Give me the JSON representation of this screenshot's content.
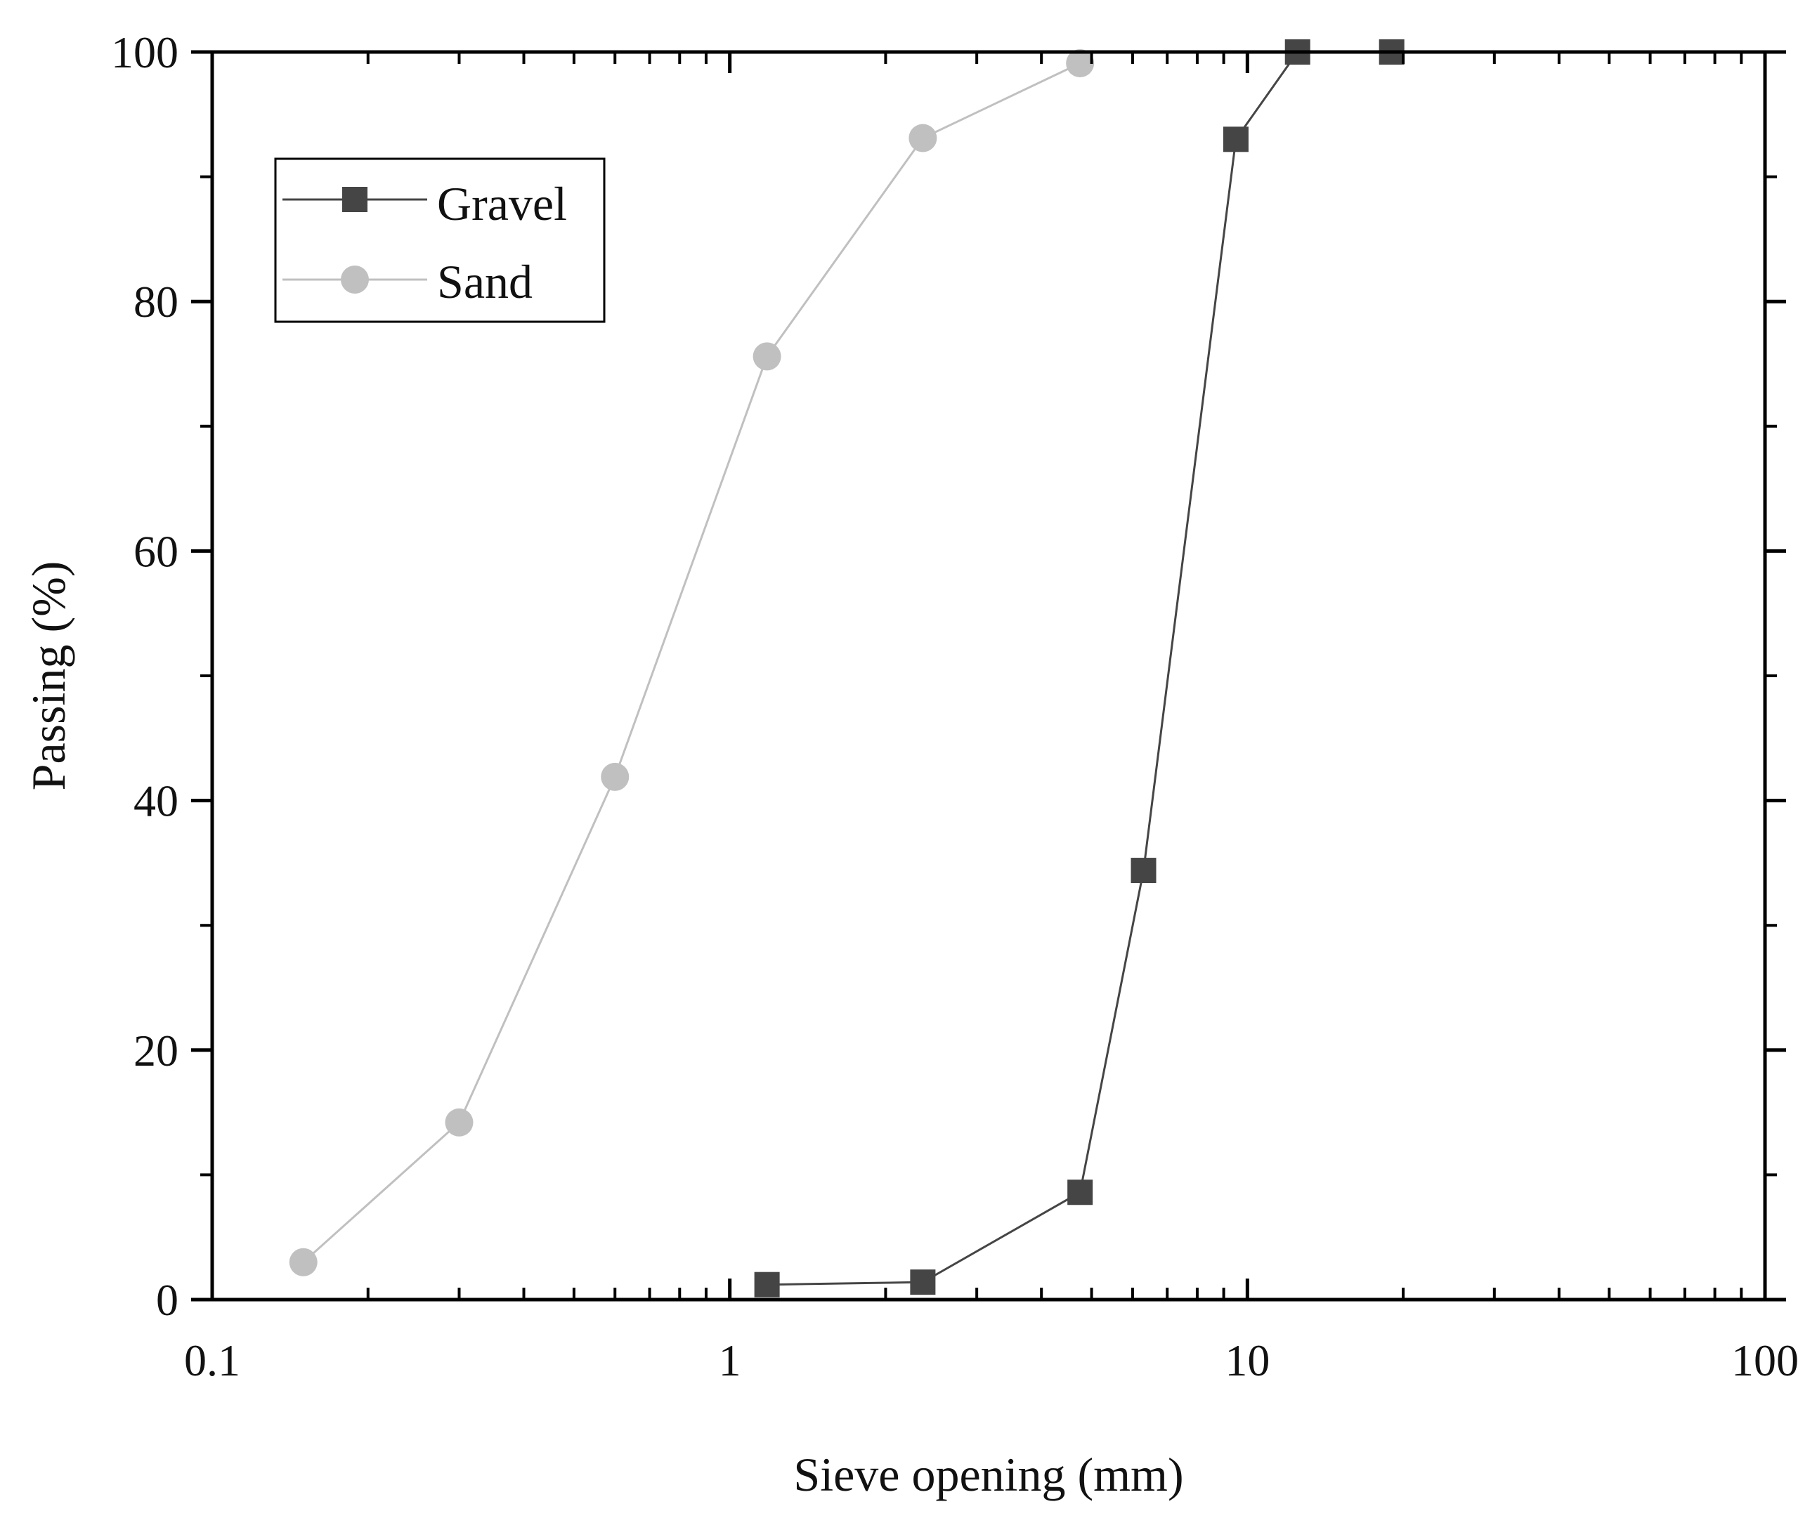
{
  "chart_data": {
    "type": "line",
    "xlabel": "Sieve opening (mm)",
    "ylabel": "Passing (%)",
    "xscale": "log",
    "xlim": [
      0.1,
      100
    ],
    "ylim": [
      0,
      100
    ],
    "xticks": [
      {
        "value": 0.1,
        "label": "0.1"
      },
      {
        "value": 1,
        "label": "1"
      },
      {
        "value": 10,
        "label": "10"
      },
      {
        "value": 100,
        "label": "100"
      }
    ],
    "yticks": [
      {
        "value": 0,
        "label": "0"
      },
      {
        "value": 20,
        "label": "20"
      },
      {
        "value": 40,
        "label": "40"
      },
      {
        "value": 60,
        "label": "60"
      },
      {
        "value": 80,
        "label": "80"
      },
      {
        "value": 100,
        "label": "100"
      }
    ],
    "grid": false,
    "legend_position": "top-left",
    "series": [
      {
        "name": "Gravel",
        "marker": "square",
        "color": "#454545",
        "x": [
          1.18,
          2.36,
          4.75,
          6.3,
          9.5,
          12.5,
          19
        ],
        "y": [
          1.2,
          1.4,
          8.6,
          34.4,
          93.0,
          100,
          100
        ]
      },
      {
        "name": "Sand",
        "marker": "circle",
        "color": "#c0c0c0",
        "x": [
          0.15,
          0.3,
          0.6,
          1.18,
          2.36,
          4.75
        ],
        "y": [
          3.0,
          14.2,
          41.9,
          75.6,
          93.1,
          99.1
        ]
      }
    ]
  }
}
